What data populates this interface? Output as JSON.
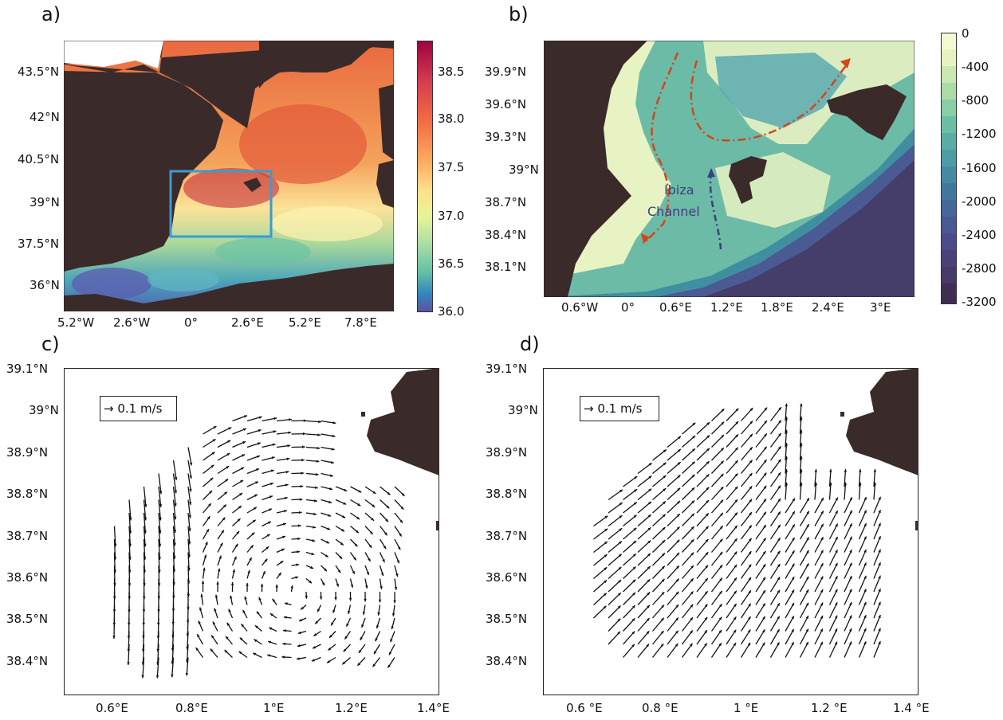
{
  "panels": {
    "a": {
      "label": "a)",
      "lat_ticks": [
        "43.5°N",
        "42°N",
        "40.5°N",
        "39°N",
        "37.5°N",
        "36°N"
      ],
      "lon_ticks": [
        "5.2°W",
        "2.6°W",
        "0°",
        "2.6°E",
        "5.2°E",
        "7.8°E"
      ],
      "colorbar_ticks": [
        "38.5",
        "38.0",
        "37.5",
        "37.0",
        "36.5",
        "36.0"
      ],
      "colorbar_range": [
        36.0,
        38.8
      ],
      "colormap": "spectral"
    },
    "b": {
      "label": "b)",
      "lat_ticks": [
        "39.9°N",
        "39.6°N",
        "39.3°N",
        "39°N",
        "38.7°N",
        "38.4°N",
        "38.1°N"
      ],
      "lon_ticks": [
        "0.6°W",
        "0°",
        "0.6°E",
        "1.2°E",
        "1.8°E",
        "2.4°E",
        "3°E"
      ],
      "colorbar_ticks": [
        "0",
        "-400",
        "-800",
        "-1200",
        "-1600",
        "-2000",
        "-2400",
        "-2800",
        "-3200"
      ],
      "annotation_line1": "Ibiza",
      "annotation_line2": "Channel",
      "current_color": "#d4451c",
      "channel_current_color": "#3f3f7a"
    },
    "c": {
      "label": "c)",
      "lat_ticks": [
        "39.1°N",
        "39°N",
        "38.9°N",
        "38.8°N",
        "38.7°N",
        "38.6°N",
        "38.5°N",
        "38.4°N"
      ],
      "lon_ticks": [
        "0.6°E",
        "0.8°E",
        "1°E",
        "1.2°E",
        "1.4°E"
      ],
      "scale_label": "→ 0.1 m/s"
    },
    "d": {
      "label": "d)",
      "lat_ticks": [
        "39.1°N",
        "39°N",
        "38.9°N",
        "38.8°N",
        "38.7°N",
        "38.6°N",
        "38.5°N",
        "38.4°N"
      ],
      "lon_ticks": [
        "0.6 °E",
        "0.8 °E",
        "1 °E",
        "1.2 °E",
        "1.4 °E"
      ],
      "scale_label": "→ 0.1 m/s"
    }
  },
  "colors": {
    "land": "#3b2a2a",
    "box": "#3a9bd4",
    "arrow": "#111111"
  }
}
